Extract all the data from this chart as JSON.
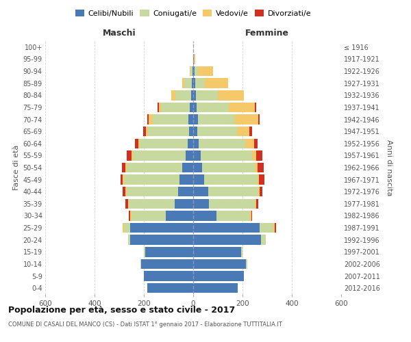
{
  "age_groups": [
    "0-4",
    "5-9",
    "10-14",
    "15-19",
    "20-24",
    "25-29",
    "30-34",
    "35-39",
    "40-44",
    "45-49",
    "50-54",
    "55-59",
    "60-64",
    "65-69",
    "70-74",
    "75-79",
    "80-84",
    "85-89",
    "90-94",
    "95-99",
    "100+"
  ],
  "birth_years": [
    "2012-2016",
    "2007-2011",
    "2002-2006",
    "1997-2001",
    "1992-1996",
    "1987-1991",
    "1982-1986",
    "1977-1981",
    "1972-1976",
    "1967-1971",
    "1962-1966",
    "1957-1961",
    "1952-1956",
    "1947-1951",
    "1942-1946",
    "1937-1941",
    "1932-1936",
    "1927-1931",
    "1922-1926",
    "1917-1921",
    "≤ 1916"
  ],
  "maschi": {
    "celibi": [
      185,
      200,
      210,
      195,
      255,
      255,
      110,
      75,
      60,
      55,
      45,
      30,
      22,
      18,
      20,
      15,
      8,
      5,
      2,
      0,
      0
    ],
    "coniugati": [
      0,
      0,
      5,
      5,
      10,
      25,
      140,
      185,
      210,
      225,
      225,
      215,
      195,
      165,
      145,
      115,
      65,
      30,
      8,
      1,
      0
    ],
    "vedovi": [
      0,
      0,
      0,
      0,
      0,
      5,
      5,
      5,
      5,
      5,
      5,
      5,
      5,
      10,
      15,
      10,
      15,
      10,
      5,
      0,
      0
    ],
    "divorziati": [
      0,
      0,
      0,
      0,
      0,
      0,
      5,
      10,
      10,
      10,
      15,
      20,
      15,
      10,
      5,
      5,
      0,
      0,
      0,
      0,
      0
    ]
  },
  "femmine": {
    "nubili": [
      180,
      205,
      215,
      195,
      275,
      270,
      95,
      65,
      60,
      45,
      35,
      30,
      22,
      18,
      20,
      15,
      10,
      8,
      5,
      2,
      0
    ],
    "coniugate": [
      0,
      0,
      5,
      5,
      20,
      55,
      135,
      185,
      205,
      215,
      215,
      210,
      190,
      160,
      150,
      130,
      90,
      40,
      15,
      2,
      0
    ],
    "vedove": [
      0,
      0,
      0,
      0,
      0,
      5,
      5,
      5,
      5,
      8,
      10,
      15,
      35,
      50,
      95,
      105,
      105,
      95,
      60,
      5,
      0
    ],
    "divorziate": [
      0,
      0,
      0,
      0,
      0,
      5,
      5,
      10,
      10,
      20,
      25,
      25,
      15,
      10,
      5,
      5,
      0,
      0,
      0,
      0,
      0
    ]
  },
  "color_celibi": "#4a7ab5",
  "color_coniugati": "#c8d9a0",
  "color_vedovi": "#f5c96a",
  "color_divorziati": "#d03020",
  "title": "Popolazione per età, sesso e stato civile - 2017",
  "subtitle": "COMUNE DI CASALI DEL MANCO (CS) - Dati ISTAT 1° gennaio 2017 - Elaborazione TUTTITALIA.IT",
  "xlabel_left": "Maschi",
  "xlabel_right": "Femmine",
  "ylabel_left": "Fasce di età",
  "ylabel_right": "Anni di nascita",
  "xlim": 600,
  "bg_color": "#ffffff",
  "grid_color": "#cccccc"
}
